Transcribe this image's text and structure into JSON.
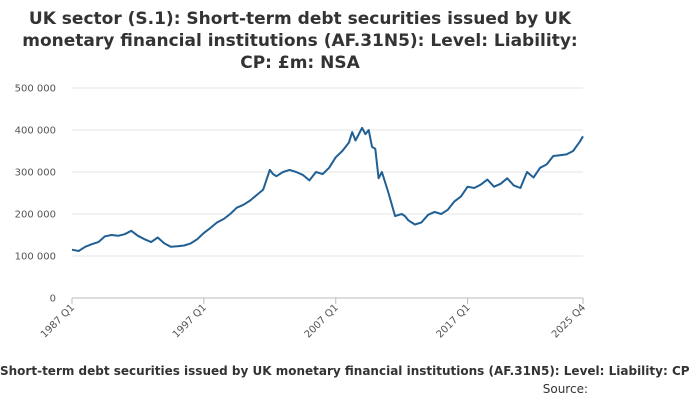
{
  "chart_data": {
    "type": "line",
    "title_lines": [
      "UK sector (S.1): Short-term debt securities issued by UK",
      "monetary financial institutions (AF.31N5): Level: Liability:",
      "CP: £m: NSA"
    ],
    "xlabel": "",
    "ylabel": "",
    "ylim": [
      0,
      500000
    ],
    "y_ticks": [
      0,
      100000,
      200000,
      300000,
      400000,
      500000
    ],
    "y_tick_labels": [
      "0",
      "100 000",
      "200 000",
      "300 000",
      "400 000",
      "500 000"
    ],
    "x_range": [
      1987.0,
      2025.75
    ],
    "x_ticks": [
      1987.0,
      1997.0,
      2007.0,
      2017.0,
      2025.75
    ],
    "x_tick_labels": [
      "1987 Q1",
      "1997 Q1",
      "2007 Q1",
      "2017 Q1",
      "2025 Q4"
    ],
    "grid": true,
    "line_color": "#206095",
    "series": [
      {
        "x": [
          1987.0,
          1987.5,
          1988.0,
          1988.5,
          1989.0,
          1989.5,
          1990.0,
          1990.5,
          1991.0,
          1991.5,
          1992.0,
          1992.5,
          1993.0,
          1993.5,
          1994.0,
          1994.5,
          1995.0,
          1995.5,
          1996.0,
          1996.5,
          1997.0,
          1997.5,
          1998.0,
          1998.5,
          1999.0,
          1999.5,
          2000.0,
          2000.5,
          2001.0,
          2001.5,
          2002.0,
          2002.25,
          2002.5,
          2003.0,
          2003.5,
          2004.0,
          2004.5,
          2005.0,
          2005.5,
          2006.0,
          2006.5,
          2007.0,
          2007.5,
          2008.0,
          2008.25,
          2008.5,
          2009.0,
          2009.25,
          2009.5,
          2009.75,
          2010.0,
          2010.25,
          2010.5,
          2011.0,
          2011.5,
          2012.0,
          2012.25,
          2012.5,
          2013.0,
          2013.5,
          2014.0,
          2014.5,
          2015.0,
          2015.5,
          2016.0,
          2016.5,
          2017.0,
          2017.5,
          2018.0,
          2018.5,
          2019.0,
          2019.5,
          2020.0,
          2020.5,
          2021.0,
          2021.5,
          2022.0,
          2022.5,
          2023.0,
          2023.5,
          2024.0,
          2024.5,
          2025.0,
          2025.5,
          2025.75
        ],
        "values": [
          115000,
          112000,
          122000,
          128000,
          133000,
          147000,
          150000,
          148000,
          152000,
          160000,
          148000,
          140000,
          133000,
          144000,
          130000,
          122000,
          123000,
          125000,
          130000,
          140000,
          155000,
          167000,
          180000,
          188000,
          200000,
          215000,
          222000,
          232000,
          245000,
          258000,
          305000,
          295000,
          290000,
          300000,
          305000,
          300000,
          293000,
          280000,
          300000,
          295000,
          310000,
          335000,
          350000,
          370000,
          395000,
          375000,
          405000,
          390000,
          400000,
          360000,
          355000,
          285000,
          300000,
          250000,
          195000,
          200000,
          195000,
          185000,
          175000,
          180000,
          198000,
          205000,
          200000,
          210000,
          230000,
          242000,
          265000,
          262000,
          270000,
          282000,
          265000,
          272000,
          285000,
          268000,
          262000,
          300000,
          287000,
          310000,
          318000,
          338000,
          340000,
          342000,
          350000,
          372000,
          385000
        ]
      }
    ]
  },
  "footer": {
    "text": "Short-term debt securities issued by UK monetary financial institutions (AF.31N5): Level: Liability: CP",
    "source": "Source:"
  }
}
